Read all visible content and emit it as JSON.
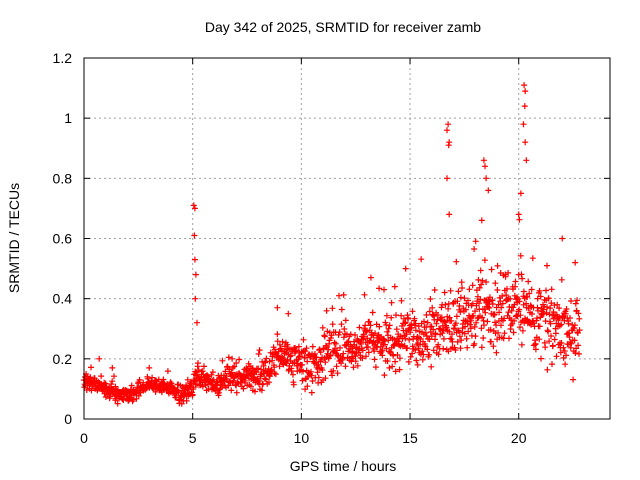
{
  "chart_data": {
    "type": "scatter",
    "title": "Day 342 of 2025, SRMTID for receiver zamb",
    "xlabel": "GPS time / hours",
    "ylabel": "SRMTID / TECUs",
    "xlim": [
      0,
      24.2
    ],
    "ylim": [
      0,
      1.2
    ],
    "x_ticks": [
      0,
      5,
      10,
      15,
      20
    ],
    "x_tick_labels": [
      "0",
      "5",
      "10",
      "15",
      "20"
    ],
    "y_ticks": [
      0,
      0.2,
      0.4,
      0.6,
      0.8,
      1.0,
      1.2
    ],
    "y_tick_labels": [
      "0",
      "0.2",
      "0.4",
      "0.6",
      "0.8",
      "1",
      "1.2"
    ],
    "grid": true,
    "marker": "+",
    "color": "#ff0000",
    "baseline": [
      {
        "x": 0.0,
        "y": 0.12
      },
      {
        "x": 0.5,
        "y": 0.12
      },
      {
        "x": 1.0,
        "y": 0.1
      },
      {
        "x": 1.5,
        "y": 0.09
      },
      {
        "x": 2.0,
        "y": 0.08
      },
      {
        "x": 2.5,
        "y": 0.09
      },
      {
        "x": 3.0,
        "y": 0.12
      },
      {
        "x": 3.5,
        "y": 0.11
      },
      {
        "x": 4.0,
        "y": 0.1
      },
      {
        "x": 4.5,
        "y": 0.08
      },
      {
        "x": 4.9,
        "y": 0.1
      },
      {
        "x": 5.3,
        "y": 0.15
      },
      {
        "x": 5.7,
        "y": 0.12
      },
      {
        "x": 6.0,
        "y": 0.11
      },
      {
        "x": 6.5,
        "y": 0.14
      },
      {
        "x": 7.0,
        "y": 0.15
      },
      {
        "x": 7.5,
        "y": 0.14
      },
      {
        "x": 8.0,
        "y": 0.13
      },
      {
        "x": 8.5,
        "y": 0.17
      },
      {
        "x": 9.0,
        "y": 0.23
      },
      {
        "x": 9.5,
        "y": 0.21
      },
      {
        "x": 10.0,
        "y": 0.19
      },
      {
        "x": 10.5,
        "y": 0.16
      },
      {
        "x": 11.0,
        "y": 0.2
      },
      {
        "x": 11.5,
        "y": 0.25
      },
      {
        "x": 12.0,
        "y": 0.22
      },
      {
        "x": 12.5,
        "y": 0.24
      },
      {
        "x": 13.0,
        "y": 0.26
      },
      {
        "x": 13.5,
        "y": 0.27
      },
      {
        "x": 14.0,
        "y": 0.25
      },
      {
        "x": 14.5,
        "y": 0.26
      },
      {
        "x": 15.0,
        "y": 0.28
      },
      {
        "x": 15.5,
        "y": 0.27
      },
      {
        "x": 16.0,
        "y": 0.29
      },
      {
        "x": 16.5,
        "y": 0.31
      },
      {
        "x": 17.0,
        "y": 0.32
      },
      {
        "x": 17.5,
        "y": 0.33
      },
      {
        "x": 18.0,
        "y": 0.35
      },
      {
        "x": 18.5,
        "y": 0.38
      },
      {
        "x": 19.0,
        "y": 0.34
      },
      {
        "x": 19.5,
        "y": 0.38
      },
      {
        "x": 20.0,
        "y": 0.36
      },
      {
        "x": 20.5,
        "y": 0.33
      },
      {
        "x": 21.0,
        "y": 0.35
      },
      {
        "x": 21.5,
        "y": 0.31
      },
      {
        "x": 22.0,
        "y": 0.3
      },
      {
        "x": 22.5,
        "y": 0.28
      },
      {
        "x": 22.8,
        "y": 0.3
      }
    ],
    "spread": [
      {
        "x": 0.0,
        "y": 0.02
      },
      {
        "x": 3.0,
        "y": 0.02
      },
      {
        "x": 5.0,
        "y": 0.03
      },
      {
        "x": 8.0,
        "y": 0.04
      },
      {
        "x": 11.0,
        "y": 0.06
      },
      {
        "x": 14.0,
        "y": 0.07
      },
      {
        "x": 16.0,
        "y": 0.08
      },
      {
        "x": 18.0,
        "y": 0.1
      },
      {
        "x": 20.0,
        "y": 0.1
      },
      {
        "x": 22.8,
        "y": 0.09
      }
    ],
    "spikes": [
      {
        "x": 0.7,
        "y": 0.2
      },
      {
        "x": 1.3,
        "y": 0.17
      },
      {
        "x": 3.0,
        "y": 0.17
      },
      {
        "x": 5.05,
        "y": 0.71
      },
      {
        "x": 5.1,
        "y": 0.7
      },
      {
        "x": 5.08,
        "y": 0.61
      },
      {
        "x": 5.1,
        "y": 0.53
      },
      {
        "x": 5.15,
        "y": 0.48
      },
      {
        "x": 5.12,
        "y": 0.4
      },
      {
        "x": 5.2,
        "y": 0.32
      },
      {
        "x": 8.9,
        "y": 0.37
      },
      {
        "x": 9.4,
        "y": 0.35
      },
      {
        "x": 13.2,
        "y": 0.47
      },
      {
        "x": 13.8,
        "y": 0.43
      },
      {
        "x": 14.3,
        "y": 0.44
      },
      {
        "x": 14.8,
        "y": 0.5
      },
      {
        "x": 16.75,
        "y": 0.98
      },
      {
        "x": 16.7,
        "y": 0.96
      },
      {
        "x": 16.8,
        "y": 0.92
      },
      {
        "x": 16.78,
        "y": 0.91
      },
      {
        "x": 16.7,
        "y": 0.8
      },
      {
        "x": 16.8,
        "y": 0.68
      },
      {
        "x": 18.4,
        "y": 0.86
      },
      {
        "x": 18.45,
        "y": 0.84
      },
      {
        "x": 18.5,
        "y": 0.8
      },
      {
        "x": 18.6,
        "y": 0.76
      },
      {
        "x": 18.3,
        "y": 0.66
      },
      {
        "x": 20.25,
        "y": 1.11
      },
      {
        "x": 20.3,
        "y": 1.09
      },
      {
        "x": 20.28,
        "y": 1.04
      },
      {
        "x": 20.22,
        "y": 0.98
      },
      {
        "x": 20.3,
        "y": 0.92
      },
      {
        "x": 20.35,
        "y": 0.86
      },
      {
        "x": 20.1,
        "y": 0.75
      },
      {
        "x": 20.0,
        "y": 0.68
      },
      {
        "x": 21.3,
        "y": 0.51
      },
      {
        "x": 22.0,
        "y": 0.6
      },
      {
        "x": 22.6,
        "y": 0.52
      }
    ],
    "point_count": 1400,
    "x_range": [
      0.0,
      22.8
    ]
  }
}
